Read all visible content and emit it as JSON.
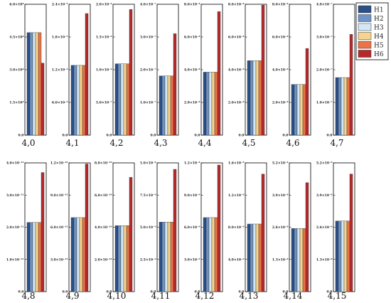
{
  "colors": {
    "H1": "#2b4f86",
    "H2": "#6f93c4",
    "H3": "#d3e7f4",
    "H4": "#f6d48f",
    "H5": "#eb7346",
    "H6": "#b7282b"
  },
  "chart_data": {
    "type": "bar",
    "series_names": [
      "H1",
      "H2",
      "H3",
      "H4",
      "H5",
      "H6"
    ],
    "legend_placement": "top-right",
    "grid": false,
    "panels": [
      {
        "title": "4,0",
        "ylim": [
          0,
          60000
        ],
        "ticks": [
          "0.0",
          "1.5×10⁴",
          "3.0×10⁴",
          "4.5×10⁴",
          "6.0×10⁴"
        ],
        "values": [
          47000,
          47000,
          47000,
          47000,
          47000,
          33000
        ]
      },
      {
        "title": "4,1",
        "ylim": [
          0,
          2.4e-05
        ],
        "ticks": [
          "0.0",
          "6.0×10⁻⁶",
          "1.2×10⁻⁵",
          "1.8×10⁻⁵",
          "2.4×10⁻⁵"
        ],
        "values": [
          1.28e-05,
          1.28e-05,
          1.28e-05,
          1.28e-05,
          1.28e-05,
          2.23e-05
        ]
      },
      {
        "title": "4,2",
        "ylim": [
          0,
          2e-06
        ],
        "ticks": [
          "0.0",
          "5.0×10⁻⁷",
          "1.0×10⁻⁶",
          "1.5×10⁻⁶",
          "2.0×10⁻⁶"
        ],
        "values": [
          1.09e-06,
          1.09e-06,
          1.09e-06,
          1.09e-06,
          1.09e-06,
          1.92e-06
        ]
      },
      {
        "title": "4,3",
        "ylim": [
          0,
          4e-07
        ],
        "ticks": [
          "0.0",
          "1.0×10⁻⁷",
          "2.0×10⁻⁷",
          "3.0×10⁻⁷",
          "4.0×10⁻⁷"
        ],
        "values": [
          1.81e-07,
          1.81e-07,
          1.81e-07,
          1.81e-07,
          1.81e-07,
          3.1e-07
        ]
      },
      {
        "title": "4,4",
        "ylim": [
          0,
          8e-08
        ],
        "ticks": [
          "0.0",
          "2.0×10⁻⁸",
          "4.0×10⁻⁸",
          "6.0×10⁻⁸",
          "8.0×10⁻⁸"
        ],
        "values": [
          3.85e-08,
          3.85e-08,
          3.85e-08,
          3.85e-08,
          3.85e-08,
          7.55e-08
        ]
      },
      {
        "title": "4,5",
        "ylim": [
          0,
          8e-08
        ],
        "ticks": [
          "0.0",
          "2.0×10⁻⁸",
          "4.0×10⁻⁸",
          "6.0×10⁻⁸",
          "8.0×10⁻⁸"
        ],
        "values": [
          4.55e-08,
          4.55e-08,
          4.55e-08,
          4.55e-08,
          4.55e-08,
          7.95e-08
        ]
      },
      {
        "title": "4,6",
        "ylim": [
          0,
          8e-08
        ],
        "ticks": [
          "0.0",
          "2.0×10⁻⁸",
          "4.0×10⁻⁸",
          "6.0×10⁻⁸",
          "8.0×10⁻⁸"
        ],
        "values": [
          3.1e-08,
          3.1e-08,
          3.1e-08,
          3.1e-08,
          3.1e-08,
          5.3e-08
        ]
      },
      {
        "title": "4,7",
        "ylim": [
          0,
          4e-07
        ],
        "ticks": [
          "0.0",
          "1.0×10⁻⁷",
          "2.0×10⁻⁷",
          "3.0×10⁻⁷",
          "4.0×10⁻⁷"
        ],
        "values": [
          1.76e-07,
          1.76e-07,
          1.76e-07,
          1.76e-07,
          1.76e-07,
          3.08e-07
        ]
      },
      {
        "title": "4,8",
        "ylim": [
          0,
          4e-11
        ],
        "ticks": [
          "0.0",
          "1.0×10⁻¹¹",
          "2.0×10⁻¹¹",
          "3.0×10⁻¹¹",
          "4.0×10⁻¹¹"
        ],
        "values": [
          2.15e-11,
          2.15e-11,
          2.15e-11,
          2.15e-11,
          2.15e-11,
          3.7e-11
        ]
      },
      {
        "title": "4,9",
        "ylim": [
          0,
          1.2e-10
        ],
        "ticks": [
          "0.0",
          "3.0×10⁻¹¹",
          "6.0×10⁻¹¹",
          "9.0×10⁻¹¹",
          "1.2×10⁻¹⁰"
        ],
        "values": [
          6.9e-11,
          6.9e-11,
          6.9e-11,
          6.9e-11,
          6.9e-11,
          1.19e-10
        ]
      },
      {
        "title": "4,10",
        "ylim": [
          0,
          8e-10
        ],
        "ticks": [
          "0.0",
          "2.0×10⁻¹⁰",
          "4.0×10⁻¹⁰",
          "6.0×10⁻¹⁰",
          "8.0×10⁻¹⁰"
        ],
        "values": [
          4.1e-10,
          4.1e-10,
          4.1e-10,
          4.1e-10,
          4.1e-10,
          7.1e-10
        ]
      },
      {
        "title": "4,11",
        "ylim": [
          0,
          1e-08
        ],
        "ticks": [
          "0.0",
          "2.5×10⁻⁹",
          "5.0×10⁻⁹",
          "7.5×10⁻⁹",
          "1.0×10⁻⁸"
        ],
        "values": [
          5.4e-09,
          5.4e-09,
          5.4e-09,
          5.4e-09,
          5.4e-09,
          9.5e-09
        ]
      },
      {
        "title": "4,12",
        "ylim": [
          0,
          1.2e-08
        ],
        "ticks": [
          "0.0",
          "3.0×10⁻⁹",
          "6.0×10⁻⁹",
          "9.0×10⁻⁹",
          "1.2×10⁻⁸"
        ],
        "values": [
          6.9e-09,
          6.9e-09,
          6.9e-09,
          6.9e-09,
          6.9e-09,
          1.18e-08
        ]
      },
      {
        "title": "4,13",
        "ylim": [
          0,
          1.6e-08
        ],
        "ticks": [
          "0.0",
          "4.0×10⁻⁹",
          "8.0×10⁻⁹",
          "1.2×10⁻⁸",
          "1.6×10⁻⁸"
        ],
        "values": [
          8.4e-09,
          8.4e-09,
          8.4e-09,
          8.4e-09,
          8.4e-09,
          1.46e-08
        ]
      },
      {
        "title": "4,14",
        "ylim": [
          0,
          5.2e-08
        ],
        "ticks": [
          "0.0",
          "1.3×10⁻⁸",
          "2.6×10⁻⁸",
          "3.9×10⁻⁸",
          "5.2×10⁻⁸"
        ],
        "values": [
          2.55e-08,
          2.55e-08,
          2.55e-08,
          2.55e-08,
          2.55e-08,
          4.4e-08
        ]
      },
      {
        "title": "4,15",
        "ylim": [
          0,
          5.2e-08
        ],
        "ticks": [
          "0.0",
          "1.3×10⁻⁸",
          "2.6×10⁻⁸",
          "3.9×10⁻⁸",
          "5.2×10⁻⁸"
        ],
        "values": [
          2.85e-08,
          2.85e-08,
          2.85e-08,
          2.85e-08,
          2.85e-08,
          4.75e-08
        ]
      }
    ]
  }
}
